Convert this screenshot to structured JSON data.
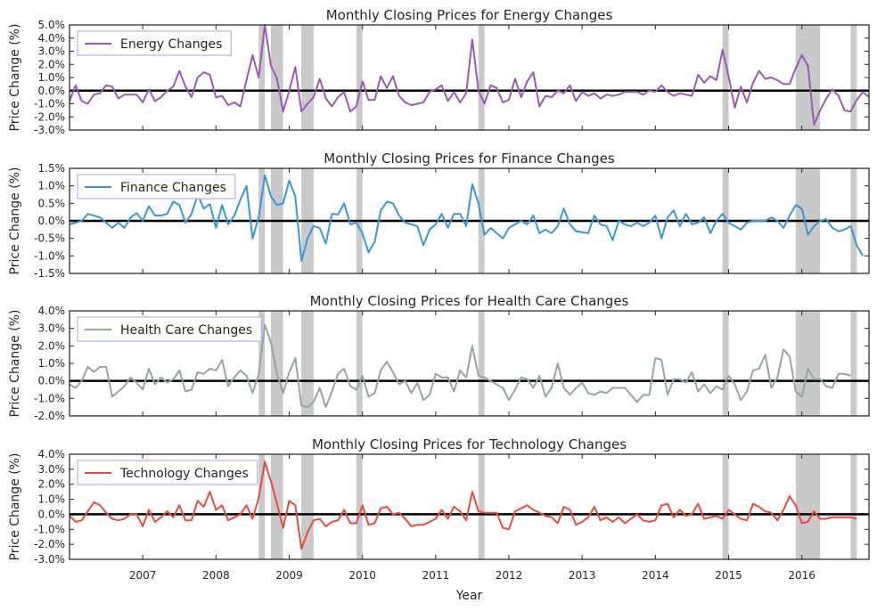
{
  "chart_data": [
    {
      "type": "line",
      "title": "Monthly Closing Prices for Energy Changes",
      "ylabel": "Price Change (%)",
      "ylim": [
        -3,
        5
      ],
      "yticks": [
        "-3.0%",
        "-2.0%",
        "-1.0%",
        "0.0%",
        "1.0%",
        "2.0%",
        "3.0%",
        "4.0%",
        "5.0%"
      ],
      "ytick_values": [
        -3,
        -2,
        -1,
        0,
        1,
        2,
        3,
        4,
        5
      ],
      "legend": "top-left",
      "series": [
        {
          "name": "Energy Changes",
          "color": "#9b59b6",
          "values": [
            -0.8,
            0.4,
            -0.8,
            -1.0,
            -0.3,
            -0.2,
            0.4,
            0.3,
            -0.6,
            -0.3,
            -0.3,
            -0.3,
            -0.9,
            0.1,
            -0.8,
            -0.5,
            0.0,
            0.3,
            1.5,
            0.3,
            -0.5,
            1.0,
            1.4,
            1.2,
            -0.5,
            -0.4,
            -1.1,
            -0.9,
            -1.2,
            0.8,
            2.7,
            1.0,
            5.0,
            1.9,
            0.9,
            -1.6,
            0.0,
            1.8,
            -1.6,
            -1.0,
            -0.5,
            0.9,
            -0.6,
            -1.2,
            -0.5,
            -0.1,
            -1.6,
            -1.2,
            0.7,
            -0.7,
            -0.7,
            1.1,
            0.2,
            1.1,
            -0.4,
            -0.9,
            -1.1,
            -1.0,
            -0.9,
            -0.1,
            0.1,
            0.4,
            -0.8,
            -0.1,
            -0.9,
            -0.2,
            3.9,
            0.0,
            -1.0,
            0.4,
            0.2,
            -0.9,
            -0.7,
            0.9,
            -0.5,
            0.7,
            1.4,
            -1.2,
            -0.4,
            -0.5,
            0.0,
            -0.2,
            0.4,
            -0.8,
            -0.1,
            -0.4,
            -0.2,
            -0.6,
            -0.3,
            -0.4,
            -0.3,
            -0.1,
            -0.1,
            -0.1,
            -0.3,
            0.0,
            -0.1,
            0.4,
            -0.1,
            -0.4,
            -0.2,
            -0.3,
            -0.4,
            1.2,
            0.6,
            1.1,
            0.8,
            3.1,
            1.1,
            -1.3,
            0.3,
            -0.9,
            0.6,
            1.5,
            0.9,
            1.0,
            0.8,
            0.5,
            0.5,
            1.7,
            2.7,
            1.9,
            -2.6,
            -1.5,
            -0.6,
            0.1,
            -0.4,
            -1.5,
            -1.6,
            -0.7,
            -0.1,
            -0.5
          ]
        }
      ]
    },
    {
      "type": "line",
      "title": "Monthly Closing Prices for Finance Changes",
      "ylabel": "Price Change (%)",
      "ylim": [
        -1.5,
        1.5
      ],
      "yticks": [
        "-1.5%",
        "-1.0%",
        "-0.5%",
        "0.0%",
        "0.5%",
        "1.0%",
        "1.5%"
      ],
      "ytick_values": [
        -1.5,
        -1.0,
        -0.5,
        0,
        0.5,
        1.0,
        1.5
      ],
      "legend": "top-left",
      "series": [
        {
          "name": "Finance Changes",
          "color": "#3498db",
          "values": [
            -0.1,
            -0.05,
            0.0,
            0.2,
            0.15,
            0.1,
            -0.05,
            -0.2,
            -0.05,
            -0.2,
            0.1,
            0.22,
            0.0,
            0.42,
            0.15,
            0.15,
            0.2,
            0.55,
            0.45,
            -0.05,
            0.2,
            0.75,
            0.35,
            0.48,
            -0.2,
            0.45,
            -0.1,
            0.15,
            0.6,
            1.0,
            -0.5,
            0.1,
            1.3,
            0.7,
            0.45,
            0.5,
            1.15,
            0.7,
            -1.15,
            -0.5,
            -0.15,
            -0.2,
            -0.65,
            0.2,
            0.18,
            0.5,
            -0.1,
            -0.05,
            -0.35,
            -0.9,
            -0.6,
            0.3,
            0.55,
            0.5,
            0.15,
            -0.05,
            -0.1,
            -0.15,
            -0.7,
            -0.25,
            -0.1,
            0.2,
            -0.2,
            0.2,
            0.2,
            -0.15,
            1.05,
            0.5,
            -0.4,
            -0.2,
            -0.35,
            -0.5,
            -0.2,
            -0.1,
            0.0,
            -0.1,
            0.15,
            -0.35,
            -0.25,
            -0.35,
            -0.15,
            0.35,
            -0.1,
            -0.3,
            -0.32,
            -0.35,
            0.15,
            -0.1,
            -0.15,
            -0.55,
            0.0,
            -0.1,
            -0.15,
            -0.05,
            -0.15,
            -0.05,
            0.15,
            -0.5,
            0.1,
            0.3,
            -0.15,
            0.2,
            -0.1,
            -0.05,
            0.1,
            -0.35,
            0.0,
            0.2,
            -0.05,
            -0.15,
            -0.25,
            -0.05,
            0.0,
            0.0,
            0.0,
            0.1,
            0.0,
            -0.2,
            0.15,
            0.45,
            0.35,
            -0.4,
            -0.15,
            0.0,
            0.05,
            -0.2,
            -0.3,
            -0.25,
            -0.15,
            -0.7,
            -1.0
          ]
        }
      ]
    },
    {
      "type": "line",
      "title": "Monthly Closing Prices for Health Care Changes",
      "ylabel": "Price Change (%)",
      "ylim": [
        -2,
        4
      ],
      "yticks": [
        "-2.0%",
        "-1.0%",
        "0.0%",
        "1.0%",
        "2.0%",
        "3.0%",
        "4.0%"
      ],
      "ytick_values": [
        -2,
        -1,
        0,
        1,
        2,
        3,
        4
      ],
      "legend": "top-left",
      "series": [
        {
          "name": "Health Care Changes",
          "color": "#95a5a6",
          "values": [
            -0.2,
            -0.4,
            0.0,
            0.8,
            0.5,
            0.8,
            0.8,
            -0.9,
            -0.6,
            -0.3,
            0.2,
            -0.1,
            -0.5,
            0.7,
            -0.2,
            0.2,
            -0.1,
            0.1,
            0.6,
            -0.6,
            -0.5,
            0.5,
            0.4,
            0.7,
            0.6,
            1.2,
            -0.3,
            0.2,
            0.6,
            0.3,
            -0.7,
            0.4,
            3.2,
            2.2,
            0.4,
            -0.7,
            0.5,
            1.3,
            -1.4,
            -1.5,
            -1.2,
            -0.4,
            -1.5,
            -0.6,
            0.4,
            0.7,
            -0.3,
            -0.5,
            0.3,
            -0.9,
            -0.7,
            0.6,
            1.1,
            0.5,
            -0.2,
            0.0,
            -0.7,
            -0.1,
            -1.1,
            -0.8,
            0.4,
            0.2,
            0.2,
            -0.6,
            0.6,
            0.2,
            2.0,
            0.3,
            0.2,
            0.0,
            -0.2,
            -0.4,
            -1.1,
            -0.5,
            0.2,
            0.1,
            -0.4,
            0.3,
            -0.9,
            -0.4,
            1.0,
            -0.4,
            -0.8,
            -0.4,
            -0.1,
            -0.7,
            -0.8,
            -0.6,
            -0.7,
            -0.4,
            -0.4,
            -0.4,
            -0.8,
            -1.2,
            -0.8,
            -0.8,
            1.3,
            1.2,
            -0.8,
            0.1,
            0.1,
            -0.1,
            0.5,
            -0.6,
            -0.2,
            -0.7,
            -0.3,
            -0.5,
            0.3,
            -0.2,
            -1.1,
            -0.6,
            0.6,
            0.7,
            1.5,
            -0.4,
            0.2,
            1.8,
            1.4,
            -0.6,
            -0.9,
            0.7,
            0.1,
            0.1,
            -0.3,
            -0.4,
            0.4,
            0.4,
            0.3
          ]
        }
      ]
    },
    {
      "type": "line",
      "title": "Monthly Closing Prices for Technology Changes",
      "ylabel": "Price Change (%)",
      "ylim": [
        -3,
        4
      ],
      "yticks": [
        "-3.0%",
        "-2.0%",
        "-1.0%",
        "0.0%",
        "1.0%",
        "2.0%",
        "3.0%",
        "4.0%"
      ],
      "ytick_values": [
        -3,
        -2,
        -1,
        0,
        1,
        2,
        3,
        4
      ],
      "legend": "top-left",
      "series": [
        {
          "name": "Technology Changes",
          "color": "#e74c3c",
          "values": [
            -0.1,
            -0.5,
            -0.4,
            0.2,
            0.8,
            0.6,
            0.1,
            -0.3,
            -0.4,
            -0.3,
            0.0,
            0.0,
            -0.8,
            0.3,
            -0.5,
            -0.2,
            0.2,
            -0.2,
            0.6,
            -0.4,
            -0.4,
            0.9,
            0.5,
            1.5,
            0.3,
            0.6,
            -0.4,
            -0.2,
            0.0,
            0.6,
            -0.3,
            1.1,
            3.5,
            2.2,
            0.7,
            -0.9,
            0.9,
            0.6,
            -2.3,
            -1.2,
            -0.4,
            -0.3,
            -0.8,
            -0.5,
            -0.4,
            0.3,
            -0.6,
            -0.6,
            0.6,
            -0.7,
            -0.6,
            0.4,
            0.5,
            0.0,
            0.1,
            -0.3,
            -0.8,
            -0.7,
            -0.7,
            -0.5,
            -0.3,
            0.3,
            -0.3,
            0.5,
            0.2,
            -0.4,
            1.5,
            0.2,
            0.1,
            0.1,
            0.1,
            -0.9,
            -1.0,
            0.2,
            0.4,
            0.6,
            0.3,
            0.1,
            -0.1,
            -0.2,
            -0.6,
            0.5,
            0.3,
            -0.7,
            -0.5,
            -0.2,
            0.5,
            -0.4,
            -0.2,
            -0.5,
            -0.2,
            -0.6,
            -0.3,
            0.0,
            -0.4,
            -0.5,
            -0.4,
            0.6,
            0.7,
            -0.2,
            0.3,
            -0.1,
            0.0,
            0.7,
            -0.3,
            -0.2,
            -0.1,
            -0.3,
            0.3,
            0.0,
            -0.3,
            -0.4,
            0.7,
            0.5,
            0.2,
            0.1,
            -0.4,
            0.3,
            1.2,
            0.6,
            -0.6,
            -0.5,
            0.2,
            -0.3,
            -0.3,
            -0.2,
            -0.2,
            -0.2,
            -0.2,
            -0.3
          ]
        }
      ]
    }
  ],
  "x_axis": {
    "label": "Year",
    "start": "2006-01",
    "end": "2016-12",
    "ticks": [
      "2007",
      "2008",
      "2009",
      "2010",
      "2011",
      "2012",
      "2013",
      "2014",
      "2015",
      "2016"
    ]
  },
  "shaded_periods": [
    {
      "start": "2008-08",
      "end": "2008-09"
    },
    {
      "start": "2008-10",
      "end": "2008-12"
    },
    {
      "start": "2009-03",
      "end": "2009-05"
    },
    {
      "start": "2009-12",
      "end": "2010-01"
    },
    {
      "start": "2011-08",
      "end": "2011-09"
    },
    {
      "start": "2014-12",
      "end": "2015-01"
    },
    {
      "start": "2015-12",
      "end": "2016-04"
    },
    {
      "start": "2016-09",
      "end": "2016-10"
    }
  ],
  "colors": {
    "zero_line": "#000000",
    "shade": "#bbbbbb",
    "legend_border": "#a0a0ff",
    "axis": "#262626"
  }
}
